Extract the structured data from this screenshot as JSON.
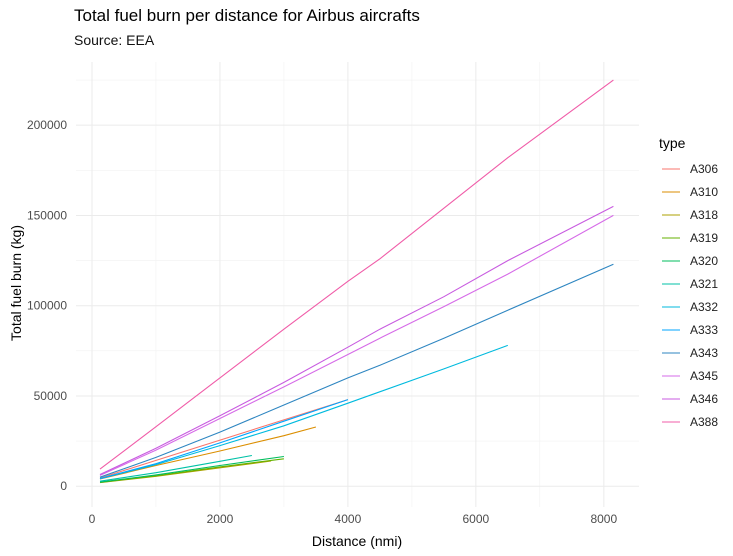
{
  "chart_data": {
    "type": "line",
    "title": "Total fuel burn per distance for Airbus aircrafts",
    "subtitle": "Source: EEA",
    "xlabel": "Distance (nmi)",
    "ylabel": "Total fuel burn (kg)",
    "xlim": [
      -250,
      8550
    ],
    "ylim": [
      -11500,
      235000
    ],
    "x_ticks": [
      0,
      2000,
      4000,
      6000,
      8000
    ],
    "x_tick_labels": [
      "0",
      "2000",
      "4000",
      "6000",
      "8000"
    ],
    "y_ticks": [
      0,
      50000,
      100000,
      150000,
      200000
    ],
    "y_tick_labels": [
      "0",
      "50000",
      "100000",
      "150000",
      "200000"
    ],
    "grid": true,
    "legend_title": "type",
    "legend_position": "right",
    "series": [
      {
        "name": "A306",
        "color": "#F8766D",
        "x": [
          125,
          4000
        ],
        "y": [
          4500,
          48000
        ]
      },
      {
        "name": "A310",
        "color": "#DB8E00",
        "x": [
          125,
          1000,
          2000,
          3000,
          3500
        ],
        "y": [
          4000,
          11500,
          19500,
          28000,
          32800
        ]
      },
      {
        "name": "A318",
        "color": "#AEA200",
        "x": [
          125,
          1000,
          2000,
          2800
        ],
        "y": [
          2000,
          5500,
          10200,
          14000
        ]
      },
      {
        "name": "A319",
        "color": "#64B200",
        "x": [
          125,
          1000,
          2000,
          3000
        ],
        "y": [
          2100,
          5800,
          10700,
          15200
        ]
      },
      {
        "name": "A320",
        "color": "#00BD5C",
        "x": [
          125,
          1000,
          2000,
          3000
        ],
        "y": [
          2300,
          6300,
          11500,
          16500
        ]
      },
      {
        "name": "A321",
        "color": "#00C1A7",
        "x": [
          125,
          1000,
          2000,
          2500
        ],
        "y": [
          2800,
          7500,
          13800,
          17000
        ]
      },
      {
        "name": "A332",
        "color": "#00BADE",
        "x": [
          125,
          1000,
          2000,
          3000,
          4000,
          5500,
          6500
        ],
        "y": [
          4200,
          12000,
          22500,
          33500,
          46000,
          65000,
          78000
        ]
      },
      {
        "name": "A333",
        "color": "#00A6FF",
        "x": [
          125,
          1000,
          2000,
          3000,
          4000,
          4000
        ],
        "y": [
          4300,
          12500,
          24000,
          36000,
          48000,
          48000
        ]
      },
      {
        "name": "A343",
        "color": "#B385FF",
        "x": [
          125,
          1000,
          2000,
          3000,
          4000,
          4500,
          5500,
          6500,
          8150
        ],
        "y": [
          5000,
          16000,
          30000,
          45000,
          60000,
          67000,
          82000,
          97500,
          123000
        ]
      },
      {
        "name": "A345",
        "color": "#EF67EB",
        "x": [
          125,
          1000,
          2000,
          3000,
          4000,
          4500,
          5500,
          6500,
          8150
        ],
        "y": [
          6000,
          20000,
          37500,
          55000,
          73000,
          82000,
          99500,
          117500,
          150000
        ]
      },
      {
        "name": "A346",
        "color": "#FF63B6",
        "x": [
          125,
          1000,
          2000,
          3000,
          4000,
          4500,
          5500,
          6500,
          8150
        ],
        "y": [
          6500,
          21000,
          39000,
          57500,
          77000,
          87000,
          105000,
          125000,
          155000
        ]
      },
      {
        "name": "A388",
        "color": "#FF6C91",
        "x": [
          125,
          1000,
          2000,
          3000,
          4000,
          4500,
          5500,
          6500,
          8150
        ],
        "y": [
          9500,
          33000,
          60000,
          87000,
          113500,
          126000,
          154000,
          182000,
          225000
        ]
      }
    ]
  },
  "series_colors_measured": {
    "A306": "#F8766D",
    "A310": "#DB8E00",
    "A318": "#AEA200",
    "A319": "#64B200",
    "A320": "#00BD5C",
    "A321": "#00C1A7",
    "A332": "#00BADE",
    "A333": "#00A6FF",
    "A343": "#2E86C1",
    "A345": "#D66BE8",
    "A346": "#C85BE0",
    "A388": "#F05CA8"
  }
}
